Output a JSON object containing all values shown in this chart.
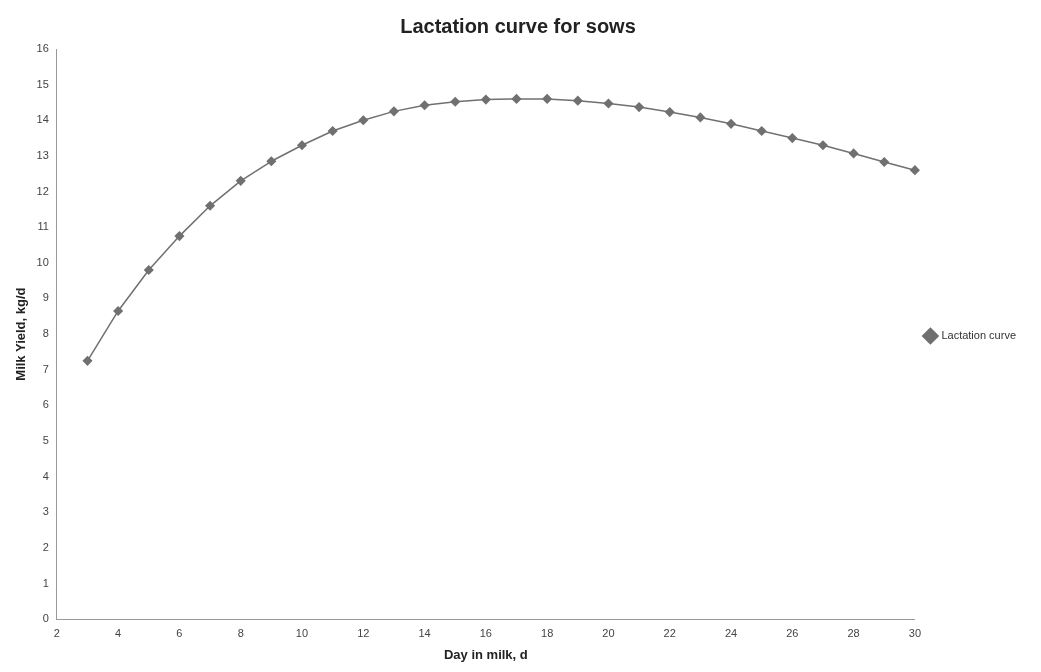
{
  "chart_data": {
    "type": "line",
    "title": "Lactation curve for sows",
    "xlabel": "Day in milk, d",
    "ylabel": "Milk Yield, kg/d",
    "x": [
      3,
      4,
      5,
      6,
      7,
      8,
      9,
      10,
      11,
      12,
      13,
      14,
      15,
      16,
      17,
      18,
      19,
      20,
      21,
      22,
      23,
      24,
      25,
      26,
      27,
      28,
      29,
      30
    ],
    "series": [
      {
        "name": "Lactation curve",
        "color": "#707070",
        "values": [
          7.25,
          8.65,
          9.8,
          10.75,
          11.6,
          12.3,
          12.85,
          13.3,
          13.7,
          14.0,
          14.25,
          14.42,
          14.52,
          14.58,
          14.6,
          14.6,
          14.55,
          14.47,
          14.37,
          14.23,
          14.08,
          13.9,
          13.7,
          13.5,
          13.3,
          13.07,
          12.83,
          12.6
        ]
      }
    ],
    "xlim": [
      2,
      30
    ],
    "xticks": [
      2,
      4,
      6,
      8,
      10,
      12,
      14,
      16,
      18,
      20,
      22,
      24,
      26,
      28,
      30
    ],
    "ylim": [
      0,
      16
    ],
    "yticks": [
      0,
      1,
      2,
      3,
      4,
      5,
      6,
      7,
      8,
      9,
      10,
      11,
      12,
      13,
      14,
      15,
      16
    ],
    "grid": false,
    "legend": "right",
    "marker": "diamond",
    "line_style": "solid"
  }
}
